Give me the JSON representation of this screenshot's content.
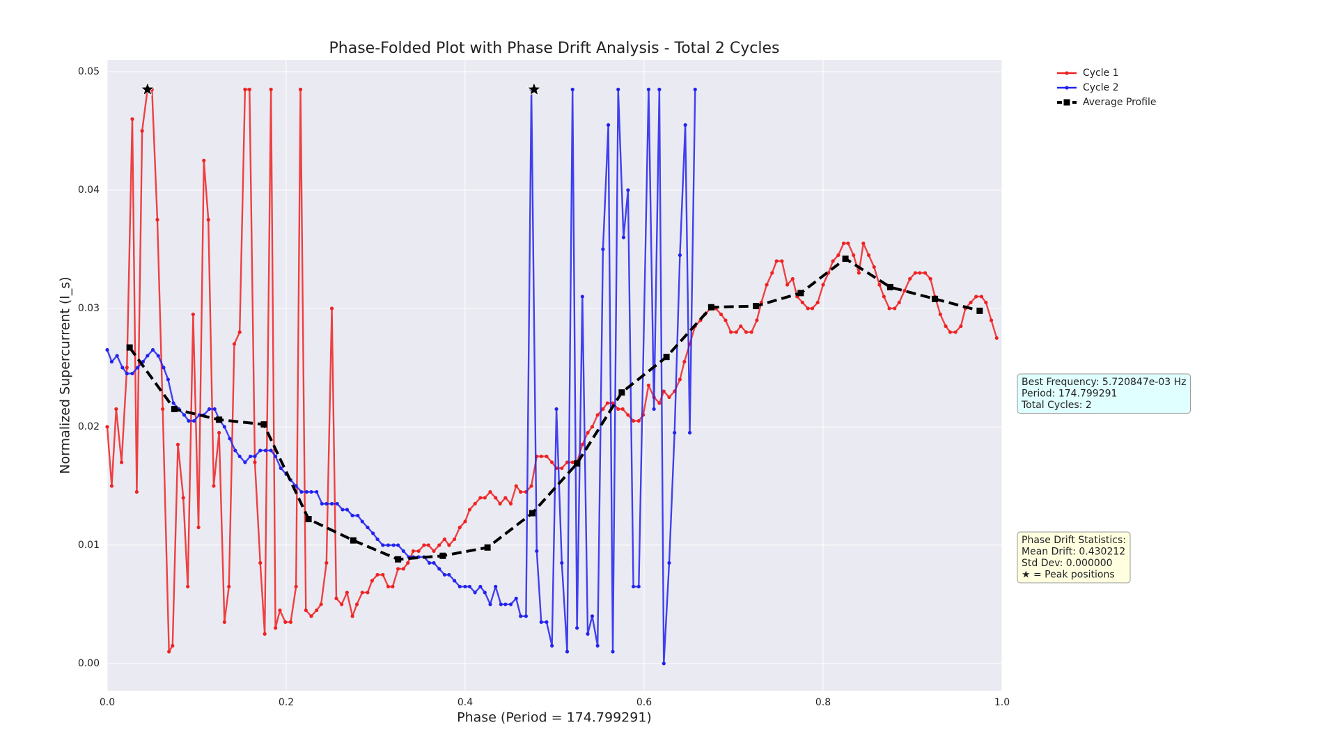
{
  "chart_data": {
    "type": "line",
    "title": "Phase-Folded Plot with Phase Drift Analysis - Total 2 Cycles",
    "x_label": "Phase (Period = 174.799291)",
    "y_label": "Normalized Supercurrent (I_s)",
    "xlim": [
      0,
      1
    ],
    "ylim": [
      -0.0023,
      0.051
    ],
    "xticks": [
      {
        "value": 0,
        "label": "0.0"
      },
      0.2,
      0.4,
      0.6,
      0.8,
      {
        "value": 1,
        "label": "1.0"
      }
    ],
    "yticks": [
      {
        "value": 0,
        "label": "0.00"
      },
      0.01,
      0.02,
      0.03,
      0.04,
      0.05
    ],
    "grid": true,
    "legend": "upper right outside",
    "series": [
      {
        "name": "Cycle 1",
        "color": "#ee2222",
        "linestyle": "solid",
        "marker": "circle",
        "x": [
          0,
          0.005,
          0.01,
          0.016,
          0.022,
          0.028,
          0.033,
          0.039,
          0.045,
          0.05,
          0.056,
          0.062,
          0.069,
          0.073,
          0.079,
          0.085,
          0.09,
          0.096,
          0.102,
          0.108,
          0.113,
          0.119,
          0.125,
          0.131,
          0.136,
          0.142,
          0.148,
          0.154,
          0.159,
          0.165,
          0.171,
          0.176,
          0.183,
          0.188,
          0.193,
          0.199,
          0.205,
          0.211,
          0.216,
          0.222,
          0.228,
          0.234,
          0.239,
          0.245,
          0.251,
          0.256,
          0.262,
          0.268,
          0.274,
          0.279,
          0.285,
          0.291,
          0.296,
          0.302,
          0.308,
          0.314,
          0.319,
          0.325,
          0.331,
          0.336,
          0.342,
          0.348,
          0.354,
          0.359,
          0.365,
          0.371,
          0.377,
          0.382,
          0.388,
          0.394,
          0.4,
          0.405,
          0.411,
          0.417,
          0.422,
          0.428,
          0.434,
          0.439,
          0.445,
          0.451,
          0.457,
          0.462,
          0.468,
          0.474,
          0.48,
          0.485,
          0.491,
          0.497,
          0.502,
          0.508,
          0.514,
          0.52,
          0.525,
          0.531,
          0.537,
          0.542,
          0.548,
          0.554,
          0.559,
          0.565,
          0.571,
          0.576,
          0.582,
          0.588,
          0.594,
          0.599,
          0.605,
          0.611,
          0.617,
          0.622,
          0.628,
          0.634,
          0.64,
          0.645,
          0.651,
          0.657,
          0.663,
          0.668,
          0.674,
          0.68,
          0.686,
          0.691,
          0.697,
          0.703,
          0.708,
          0.714,
          0.72,
          0.726,
          0.731,
          0.737,
          0.743,
          0.748,
          0.754,
          0.76,
          0.766,
          0.771,
          0.777,
          0.783,
          0.788,
          0.794,
          0.8,
          0.806,
          0.811,
          0.817,
          0.823,
          0.828,
          0.834,
          0.84,
          0.845,
          0.851,
          0.857,
          0.863,
          0.868,
          0.874,
          0.88,
          0.885,
          0.891,
          0.897,
          0.903,
          0.908,
          0.914,
          0.92,
          0.925,
          0.931,
          0.937,
          0.942,
          0.948,
          0.954,
          0.959,
          0.965,
          0.971,
          0.977,
          0.982,
          0.988,
          0.994
        ],
        "values": [
          0.02,
          0.015,
          0.0215,
          0.017,
          0.025,
          0.046,
          0.0145,
          0.045,
          0.0485,
          0.0485,
          0.0375,
          0.0215,
          0.001,
          0.0015,
          0.0185,
          0.014,
          0.0065,
          0.0295,
          0.0115,
          0.0425,
          0.0375,
          0.015,
          0.0195,
          0.0035,
          0.0065,
          0.027,
          0.028,
          0.0485,
          0.0485,
          0.017,
          0.0085,
          0.0025,
          0.0485,
          0.003,
          0.0045,
          0.0035,
          0.0035,
          0.0065,
          0.0485,
          0.0045,
          0.004,
          0.0045,
          0.005,
          0.0085,
          0.03,
          0.0055,
          0.005,
          0.006,
          0.004,
          0.005,
          0.006,
          0.006,
          0.007,
          0.0075,
          0.0075,
          0.0065,
          0.0065,
          0.008,
          0.008,
          0.0085,
          0.0095,
          0.0095,
          0.01,
          0.01,
          0.0095,
          0.01,
          0.0105,
          0.01,
          0.0105,
          0.0115,
          0.012,
          0.013,
          0.0135,
          0.014,
          0.014,
          0.0145,
          0.014,
          0.0135,
          0.014,
          0.0135,
          0.015,
          0.0145,
          0.0145,
          0.015,
          0.0175,
          0.0175,
          0.0175,
          0.017,
          0.0165,
          0.0165,
          0.017,
          0.017,
          0.017,
          0.0185,
          0.0195,
          0.02,
          0.021,
          0.0215,
          0.022,
          0.022,
          0.0215,
          0.0215,
          0.021,
          0.0205,
          0.0205,
          0.021,
          0.0235,
          0.0225,
          0.022,
          0.023,
          0.0225,
          0.023,
          0.024,
          0.0255,
          0.027,
          0.0285,
          0.029,
          0.0295,
          0.03,
          0.03,
          0.0295,
          0.029,
          0.028,
          0.028,
          0.0285,
          0.028,
          0.028,
          0.029,
          0.0305,
          0.032,
          0.033,
          0.034,
          0.034,
          0.032,
          0.0325,
          0.031,
          0.0305,
          0.03,
          0.03,
          0.0305,
          0.032,
          0.033,
          0.034,
          0.0345,
          0.0355,
          0.0355,
          0.0345,
          0.033,
          0.0355,
          0.0345,
          0.0335,
          0.032,
          0.031,
          0.03,
          0.03,
          0.0305,
          0.0315,
          0.0325,
          0.033,
          0.033,
          0.033,
          0.0325,
          0.031,
          0.0295,
          0.0285,
          0.028,
          0.028,
          0.0285,
          0.03,
          0.0305,
          0.031,
          0.031,
          0.0305,
          0.029,
          0.0275
        ]
      },
      {
        "name": "Cycle 2",
        "color": "#2222ee",
        "linestyle": "solid",
        "marker": "circle",
        "x": [
          0,
          0.005,
          0.011,
          0.017,
          0.022,
          0.028,
          0.034,
          0.04,
          0.045,
          0.051,
          0.057,
          0.063,
          0.068,
          0.074,
          0.08,
          0.086,
          0.091,
          0.097,
          0.103,
          0.108,
          0.114,
          0.12,
          0.126,
          0.131,
          0.137,
          0.143,
          0.148,
          0.154,
          0.16,
          0.165,
          0.171,
          0.177,
          0.183,
          0.188,
          0.194,
          0.2,
          0.205,
          0.211,
          0.217,
          0.223,
          0.228,
          0.234,
          0.24,
          0.245,
          0.251,
          0.257,
          0.263,
          0.268,
          0.274,
          0.28,
          0.285,
          0.291,
          0.297,
          0.302,
          0.308,
          0.314,
          0.32,
          0.325,
          0.331,
          0.337,
          0.342,
          0.348,
          0.354,
          0.36,
          0.365,
          0.371,
          0.377,
          0.382,
          0.388,
          0.394,
          0.4,
          0.405,
          0.411,
          0.417,
          0.422,
          0.428,
          0.434,
          0.44,
          0.445,
          0.451,
          0.457,
          0.462,
          0.468,
          0.474,
          0.48,
          0.485,
          0.491,
          0.497,
          0.502,
          0.508,
          0.514,
          0.52,
          0.525,
          0.531,
          0.537,
          0.542,
          0.548,
          0.554,
          0.56,
          0.565,
          0.571,
          0.577,
          0.582,
          0.588,
          0.594,
          0.605,
          0.611,
          0.617,
          0.622,
          0.628,
          0.634,
          0.64,
          0.646,
          0.651,
          0.657
        ],
        "values": [
          0.0265,
          0.0255,
          0.026,
          0.025,
          0.0245,
          0.0245,
          0.025,
          0.0255,
          0.026,
          0.0265,
          0.026,
          0.025,
          0.024,
          0.022,
          0.0215,
          0.021,
          0.0205,
          0.0205,
          0.021,
          0.021,
          0.0215,
          0.0215,
          0.0205,
          0.02,
          0.019,
          0.018,
          0.0175,
          0.017,
          0.0175,
          0.0175,
          0.018,
          0.018,
          0.018,
          0.0175,
          0.0165,
          0.016,
          0.0155,
          0.015,
          0.0145,
          0.0145,
          0.0145,
          0.0145,
          0.0135,
          0.0135,
          0.0135,
          0.0135,
          0.013,
          0.013,
          0.0125,
          0.0125,
          0.012,
          0.0115,
          0.011,
          0.0105,
          0.01,
          0.01,
          0.01,
          0.01,
          0.0095,
          0.009,
          0.009,
          0.009,
          0.009,
          0.0085,
          0.0085,
          0.008,
          0.0075,
          0.0075,
          0.007,
          0.0065,
          0.0065,
          0.0065,
          0.006,
          0.0065,
          0.006,
          0.005,
          0.0065,
          0.005,
          0.005,
          0.005,
          0.0055,
          0.004,
          0.004,
          0.0485,
          0.0095,
          0.0035,
          0.0035,
          0.0015,
          0.0215,
          0.0085,
          0.001,
          0.0485,
          0.003,
          0.031,
          0.0025,
          0.004,
          0.0015,
          0.035,
          0.0455,
          0.001,
          0.0485,
          0.036,
          0.04,
          0.0065,
          0.0065,
          0.0485,
          0.0215,
          0.0485,
          0,
          0.0085,
          0.0195,
          0.0345,
          0.0455,
          0.0195,
          0.0485
        ]
      },
      {
        "name": "Average Profile",
        "color": "#000000",
        "linestyle": "dashed",
        "marker": "square",
        "x": [
          0.025,
          0.075,
          0.125,
          0.175,
          0.225,
          0.275,
          0.325,
          0.375,
          0.425,
          0.475,
          0.525,
          0.575,
          0.625,
          0.675,
          0.725,
          0.775,
          0.825,
          0.875,
          0.925,
          0.975
        ],
        "values": [
          0.0267,
          0.0215,
          0.0206,
          0.0202,
          0.0122,
          0.0104,
          0.0088,
          0.0091,
          0.0098,
          0.0127,
          0.0169,
          0.0229,
          0.0259,
          0.0301,
          0.0302,
          0.0313,
          0.0342,
          0.0318,
          0.0308,
          0.0298
        ]
      }
    ],
    "peak_markers": {
      "color": "#000000",
      "x": [
        0.045,
        0.477
      ],
      "values": [
        0.0485,
        0.0485
      ]
    },
    "info_box": {
      "color": "#e0ffff",
      "lines": [
        "Best Frequency: 5.720847e-03 Hz",
        "Period: 174.799291",
        "Total Cycles: 2"
      ]
    },
    "drift_box": {
      "color": "#ffffe0",
      "lines": [
        "Phase Drift Statistics:",
        "Mean Drift: 0.430212",
        "Std Dev: 0.000000",
        "★ = Peak positions"
      ]
    }
  }
}
